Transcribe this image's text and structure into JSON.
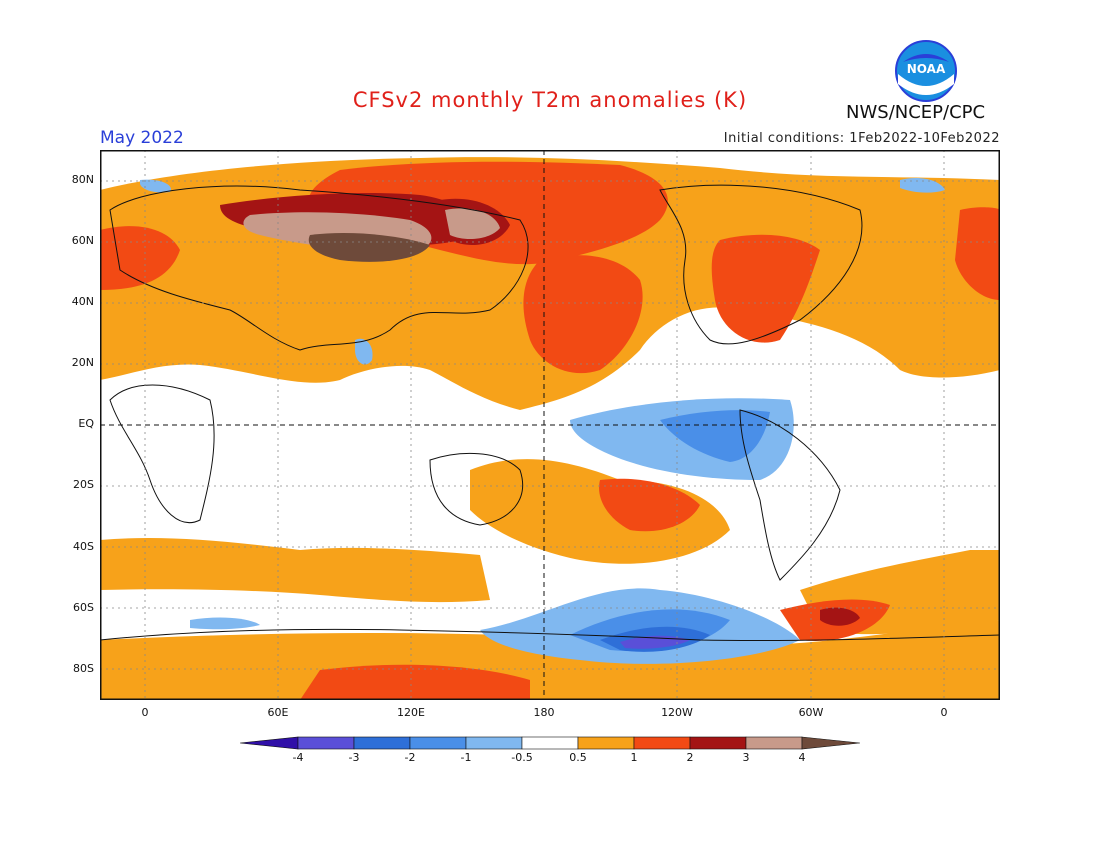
{
  "title": "CFSv2 monthly T2m anomalies (K)",
  "month_label": "May 2022",
  "initial_conditions": "Initial conditions: 1Feb2022-10Feb2022",
  "agency": "NWS/NCEP/CPC",
  "logo_text": "NOAA",
  "map": {
    "lat_ticks": [
      "80N",
      "60N",
      "40N",
      "20N",
      "EQ",
      "20S",
      "40S",
      "60S",
      "80S"
    ],
    "lon_ticks": [
      "0",
      "60E",
      "120E",
      "180",
      "120W",
      "60W",
      "0"
    ],
    "reference_lines": [
      "EQ",
      "180"
    ]
  },
  "colorbar": {
    "labels": [
      "-4",
      "-3",
      "-2",
      "-1",
      "-0.5",
      "0.5",
      "1",
      "2",
      "3",
      "4"
    ],
    "colors": [
      "#3010a8",
      "#5a4fd8",
      "#2e6fd8",
      "#4a8fe8",
      "#80b8f0",
      "#ffffff",
      "#f7a21a",
      "#f24a14",
      "#a41414",
      "#c89a8a",
      "#6e4a3a"
    ]
  }
}
